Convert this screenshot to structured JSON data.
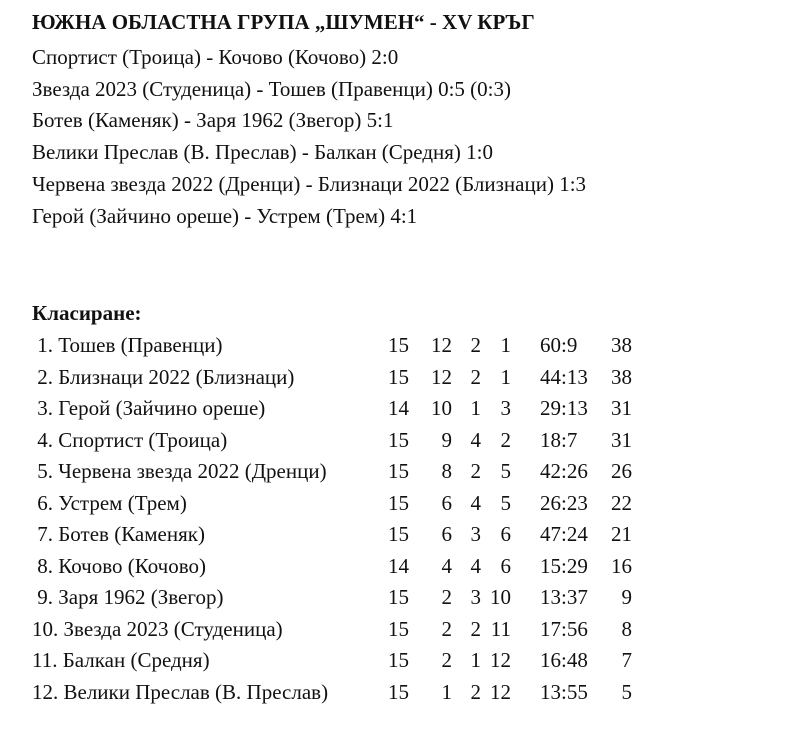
{
  "title": "ЮЖНА ОБЛАСТНА ГРУПА „ШУМЕН“ - XV КРЪГ",
  "results": [
    "Спортист (Троица) - Кочово (Кочово) 2:0",
    "Звезда 2023 (Студеница) - Тошев (Правенци) 0:5 (0:3)",
    "Ботев (Каменяк) - Заря 1962 (Звегор) 5:1",
    "Велики Преслав (В. Преслав) - Балкан (Средня) 1:0",
    "Червена звезда 2022 (Дренци) - Близнаци 2022 (Близнаци) 1:3",
    "Герой (Зайчино ореше) - Устрем (Трем) 4:1"
  ],
  "standings_heading": "Класиране:",
  "standings": [
    {
      "team": " 1. Тошев (Правенци)",
      "played": "15",
      "won": "12",
      "drawn": "2",
      "lost": "1",
      "goals": "60:9",
      "points": "38"
    },
    {
      "team": " 2. Близнаци 2022 (Близнаци)",
      "played": "15",
      "won": "12",
      "drawn": "2",
      "lost": "1",
      "goals": "44:13",
      "points": "38"
    },
    {
      "team": " 3. Герой (Зайчино ореше)",
      "played": "14",
      "won": "10",
      "drawn": "1",
      "lost": "3",
      "goals": "29:13",
      "points": "31"
    },
    {
      "team": " 4. Спортист (Троица)",
      "played": "15",
      "won": "9",
      "drawn": "4",
      "lost": "2",
      "goals": "18:7",
      "points": "31"
    },
    {
      "team": " 5. Червена звезда 2022 (Дренци)",
      "played": "15",
      "won": "8",
      "drawn": "2",
      "lost": "5",
      "goals": "42:26",
      "points": "26"
    },
    {
      "team": " 6. Устрем (Трем)",
      "played": "15",
      "won": "6",
      "drawn": "4",
      "lost": "5",
      "goals": "26:23",
      "points": "22"
    },
    {
      "team": " 7. Ботев (Каменяк)",
      "played": "15",
      "won": "6",
      "drawn": "3",
      "lost": "6",
      "goals": "47:24",
      "points": "21"
    },
    {
      "team": " 8. Кочово (Кочово)",
      "played": "14",
      "won": "4",
      "drawn": "4",
      "lost": "6",
      "goals": "15:29",
      "points": "16"
    },
    {
      "team": " 9. Заря 1962 (Звегор)",
      "played": "15",
      "won": "2",
      "drawn": "3",
      "lost": "10",
      "goals": "13:37",
      "points": "9"
    },
    {
      "team": "10. Звезда 2023 (Студеница)",
      "played": "15",
      "won": "2",
      "drawn": "2",
      "lost": "11",
      "goals": "17:56",
      "points": "8"
    },
    {
      "team": "11. Балкан (Средня)",
      "played": "15",
      "won": "2",
      "drawn": "1",
      "lost": "12",
      "goals": "16:48",
      "points": "7"
    },
    {
      "team": "12. Велики Преслав (В. Преслав)",
      "played": "15",
      "won": "1",
      "drawn": "2",
      "lost": "12",
      "goals": "13:55",
      "points": "5"
    }
  ]
}
